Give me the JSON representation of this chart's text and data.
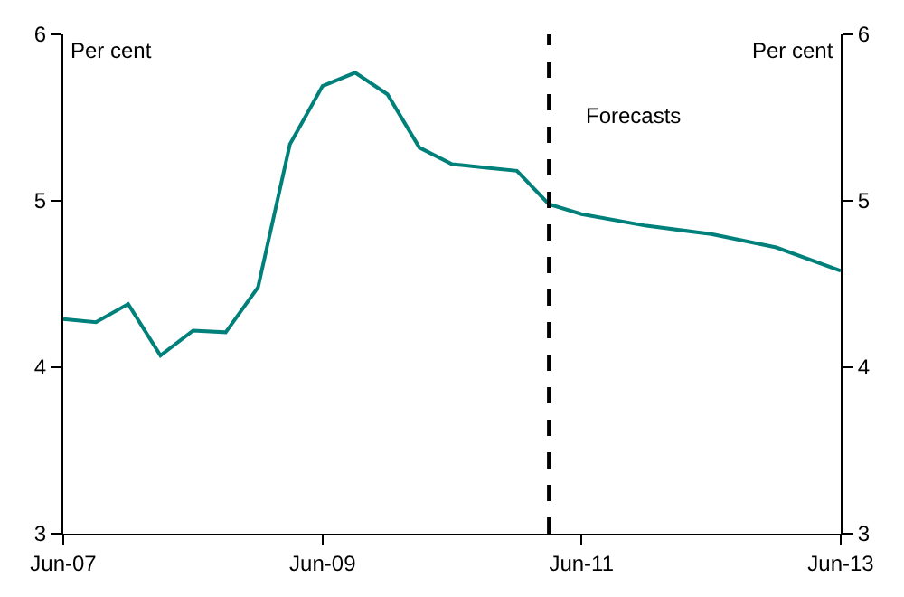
{
  "chart_data": {
    "type": "line",
    "ylabel": "Per cent",
    "y2label": "Per cent",
    "x": [
      "2007-06",
      "2007-09",
      "2007-12",
      "2008-03",
      "2008-06",
      "2008-09",
      "2008-12",
      "2009-03",
      "2009-06",
      "2009-09",
      "2009-12",
      "2010-03",
      "2010-06",
      "2010-09",
      "2010-12",
      "2011-03",
      "2011-06",
      "2011-12",
      "2012-06",
      "2012-12",
      "2013-06"
    ],
    "series": [
      {
        "color": "#00807a",
        "values": [
          4.29,
          4.27,
          4.38,
          4.07,
          4.22,
          4.21,
          4.48,
          5.34,
          5.69,
          5.77,
          5.64,
          5.32,
          5.22,
          5.2,
          5.18,
          4.98,
          4.92,
          4.85,
          4.8,
          4.72,
          4.58
        ]
      }
    ],
    "xlim": [
      "2007-06",
      "2013-06"
    ],
    "xticks": [
      {
        "value": "2007-06",
        "label": "Jun-07"
      },
      {
        "value": "2009-06",
        "label": "Jun-09"
      },
      {
        "value": "2011-06",
        "label": "Jun-11"
      },
      {
        "value": "2013-06",
        "label": "Jun-13"
      }
    ],
    "ylim": [
      3,
      6
    ],
    "yticks": [
      3,
      4,
      5,
      6
    ],
    "y2lim": [
      3,
      6
    ],
    "y2ticks": [
      3,
      4,
      5,
      6
    ],
    "ref_lines": [
      {
        "axis": "x",
        "value": "2011-03",
        "color": "#000000",
        "line_style": "dashed"
      }
    ],
    "annotations": [
      "Forecasts"
    ],
    "line_style": "solid",
    "marker": "none"
  }
}
